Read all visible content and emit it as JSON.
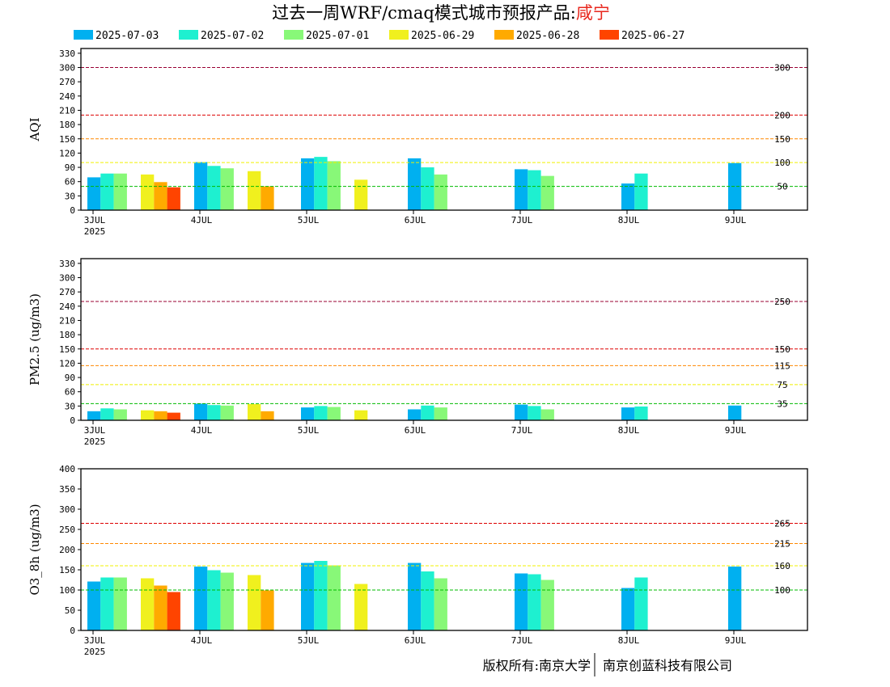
{
  "title": {
    "main": "过去一周WRF/cmaq模式城市预报产品:",
    "city": "咸宁"
  },
  "footer": {
    "left": "版权所有:南京大学",
    "right": "南京创蓝科技有限公司"
  },
  "legend": [
    {
      "label": "2025-07-03",
      "color": "#00b0f0"
    },
    {
      "label": "2025-07-02",
      "color": "#1ef0d0"
    },
    {
      "label": "2025-07-01",
      "color": "#88f878"
    },
    {
      "label": "2025-06-29",
      "color": "#f0f01e"
    },
    {
      "label": "2025-06-28",
      "color": "#ffaa00"
    },
    {
      "label": "2025-06-27",
      "color": "#ff4400"
    }
  ],
  "chart_data": [
    {
      "type": "bar",
      "ylabel": "AQI",
      "ylim": [
        0,
        340
      ],
      "yticks": [
        0,
        30,
        60,
        90,
        120,
        150,
        180,
        210,
        240,
        270,
        300,
        330
      ],
      "x_tick_labels": [
        {
          "day": "3JUL",
          "year": "2025"
        },
        {
          "day": "4JUL",
          "year": ""
        },
        {
          "day": "5JUL",
          "year": ""
        },
        {
          "day": "6JUL",
          "year": ""
        },
        {
          "day": "7JUL",
          "year": ""
        },
        {
          "day": "8JUL",
          "year": ""
        },
        {
          "day": "9JUL",
          "year": ""
        }
      ],
      "thresholds": [
        {
          "value": 50,
          "label": "50",
          "color": "#00bb00"
        },
        {
          "value": 100,
          "label": "100",
          "color": "#f0f000"
        },
        {
          "value": 150,
          "label": "150",
          "color": "#ff8800"
        },
        {
          "value": 200,
          "label": "200",
          "color": "#dd0000"
        },
        {
          "value": 300,
          "label": "300",
          "color": "#990033"
        }
      ],
      "groups": [
        {
          "bars": [
            {
              "series": 0,
              "value": 69
            },
            {
              "series": 1,
              "value": 77
            },
            {
              "series": 2,
              "value": 77
            }
          ]
        },
        {
          "bars": [
            {
              "series": 3,
              "value": 75
            },
            {
              "series": 4,
              "value": 59
            },
            {
              "series": 5,
              "value": 48
            }
          ]
        },
        {
          "bars": [
            {
              "series": 0,
              "value": 101
            },
            {
              "series": 1,
              "value": 93
            },
            {
              "series": 2,
              "value": 88
            }
          ]
        },
        {
          "bars": [
            {
              "series": 3,
              "value": 82
            },
            {
              "series": 4,
              "value": 50
            }
          ]
        },
        {
          "bars": [
            {
              "series": 0,
              "value": 109
            },
            {
              "series": 1,
              "value": 112
            },
            {
              "series": 2,
              "value": 103
            }
          ]
        },
        {
          "bars": [
            {
              "series": 3,
              "value": 64
            }
          ]
        },
        {
          "bars": [
            {
              "series": 0,
              "value": 109
            },
            {
              "series": 1,
              "value": 90
            },
            {
              "series": 2,
              "value": 75
            }
          ]
        },
        {
          "bars": []
        },
        {
          "bars": [
            {
              "series": 0,
              "value": 86
            },
            {
              "series": 1,
              "value": 84
            },
            {
              "series": 2,
              "value": 72
            }
          ]
        },
        {
          "bars": []
        },
        {
          "bars": [
            {
              "series": 0,
              "value": 56
            },
            {
              "series": 1,
              "value": 77
            }
          ]
        },
        {
          "bars": []
        },
        {
          "bars": [
            {
              "series": 0,
              "value": 99
            }
          ]
        },
        {
          "bars": []
        }
      ]
    },
    {
      "type": "bar",
      "ylabel": "PM2.5 (ug/m3)",
      "ylim": [
        0,
        340
      ],
      "yticks": [
        0,
        30,
        60,
        90,
        120,
        150,
        180,
        210,
        240,
        270,
        300,
        330
      ],
      "x_tick_labels": [
        {
          "day": "3JUL",
          "year": "2025"
        },
        {
          "day": "4JUL",
          "year": ""
        },
        {
          "day": "5JUL",
          "year": ""
        },
        {
          "day": "6JUL",
          "year": ""
        },
        {
          "day": "7JUL",
          "year": ""
        },
        {
          "day": "8JUL",
          "year": ""
        },
        {
          "day": "9JUL",
          "year": ""
        }
      ],
      "thresholds": [
        {
          "value": 35,
          "label": "35",
          "color": "#00bb00"
        },
        {
          "value": 75,
          "label": "75",
          "color": "#f0f000"
        },
        {
          "value": 115,
          "label": "115",
          "color": "#ff8800"
        },
        {
          "value": 150,
          "label": "150",
          "color": "#dd0000"
        },
        {
          "value": 250,
          "label": "250",
          "color": "#990033"
        }
      ],
      "groups": [
        {
          "bars": [
            {
              "series": 0,
              "value": 19
            },
            {
              "series": 1,
              "value": 25
            },
            {
              "series": 2,
              "value": 23
            }
          ]
        },
        {
          "bars": [
            {
              "series": 3,
              "value": 21
            },
            {
              "series": 4,
              "value": 19
            },
            {
              "series": 5,
              "value": 16
            }
          ]
        },
        {
          "bars": [
            {
              "series": 0,
              "value": 35
            },
            {
              "series": 1,
              "value": 32
            },
            {
              "series": 2,
              "value": 31
            }
          ]
        },
        {
          "bars": [
            {
              "series": 3,
              "value": 34
            },
            {
              "series": 4,
              "value": 19
            }
          ]
        },
        {
          "bars": [
            {
              "series": 0,
              "value": 27
            },
            {
              "series": 1,
              "value": 30
            },
            {
              "series": 2,
              "value": 28
            }
          ]
        },
        {
          "bars": [
            {
              "series": 3,
              "value": 21
            }
          ]
        },
        {
          "bars": [
            {
              "series": 0,
              "value": 23
            },
            {
              "series": 1,
              "value": 31
            },
            {
              "series": 2,
              "value": 27
            }
          ]
        },
        {
          "bars": []
        },
        {
          "bars": [
            {
              "series": 0,
              "value": 33
            },
            {
              "series": 1,
              "value": 30
            },
            {
              "series": 2,
              "value": 23
            }
          ]
        },
        {
          "bars": []
        },
        {
          "bars": [
            {
              "series": 0,
              "value": 27
            },
            {
              "series": 1,
              "value": 29
            }
          ]
        },
        {
          "bars": []
        },
        {
          "bars": [
            {
              "series": 0,
              "value": 31
            }
          ]
        },
        {
          "bars": []
        }
      ]
    },
    {
      "type": "bar",
      "ylabel": "O3_8h (ug/m3)",
      "ylim": [
        0,
        400
      ],
      "yticks": [
        0,
        50,
        100,
        150,
        200,
        250,
        300,
        350,
        400
      ],
      "x_tick_labels": [
        {
          "day": "3JUL",
          "year": "2025"
        },
        {
          "day": "4JUL",
          "year": ""
        },
        {
          "day": "5JUL",
          "year": ""
        },
        {
          "day": "6JUL",
          "year": ""
        },
        {
          "day": "7JUL",
          "year": ""
        },
        {
          "day": "8JUL",
          "year": ""
        },
        {
          "day": "9JUL",
          "year": ""
        }
      ],
      "thresholds": [
        {
          "value": 100,
          "label": "100",
          "color": "#00bb00"
        },
        {
          "value": 160,
          "label": "160",
          "color": "#f0f000"
        },
        {
          "value": 215,
          "label": "215",
          "color": "#ff8800"
        },
        {
          "value": 265,
          "label": "265",
          "color": "#dd0000"
        }
      ],
      "groups": [
        {
          "bars": [
            {
              "series": 0,
              "value": 121
            },
            {
              "series": 1,
              "value": 131
            },
            {
              "series": 2,
              "value": 131
            }
          ]
        },
        {
          "bars": [
            {
              "series": 3,
              "value": 129
            },
            {
              "series": 4,
              "value": 111
            },
            {
              "series": 5,
              "value": 95
            }
          ]
        },
        {
          "bars": [
            {
              "series": 0,
              "value": 158
            },
            {
              "series": 1,
              "value": 149
            },
            {
              "series": 2,
              "value": 143
            }
          ]
        },
        {
          "bars": [
            {
              "series": 3,
              "value": 137
            },
            {
              "series": 4,
              "value": 99
            }
          ]
        },
        {
          "bars": [
            {
              "series": 0,
              "value": 167
            },
            {
              "series": 1,
              "value": 172
            },
            {
              "series": 2,
              "value": 161
            }
          ]
        },
        {
          "bars": [
            {
              "series": 3,
              "value": 115
            }
          ]
        },
        {
          "bars": [
            {
              "series": 0,
              "value": 167
            },
            {
              "series": 1,
              "value": 146
            },
            {
              "series": 2,
              "value": 129
            }
          ]
        },
        {
          "bars": []
        },
        {
          "bars": [
            {
              "series": 0,
              "value": 141
            },
            {
              "series": 1,
              "value": 139
            },
            {
              "series": 2,
              "value": 125
            }
          ]
        },
        {
          "bars": []
        },
        {
          "bars": [
            {
              "series": 0,
              "value": 105
            },
            {
              "series": 1,
              "value": 131
            }
          ]
        },
        {
          "bars": []
        },
        {
          "bars": [
            {
              "series": 0,
              "value": 158
            }
          ]
        },
        {
          "bars": []
        }
      ]
    }
  ]
}
